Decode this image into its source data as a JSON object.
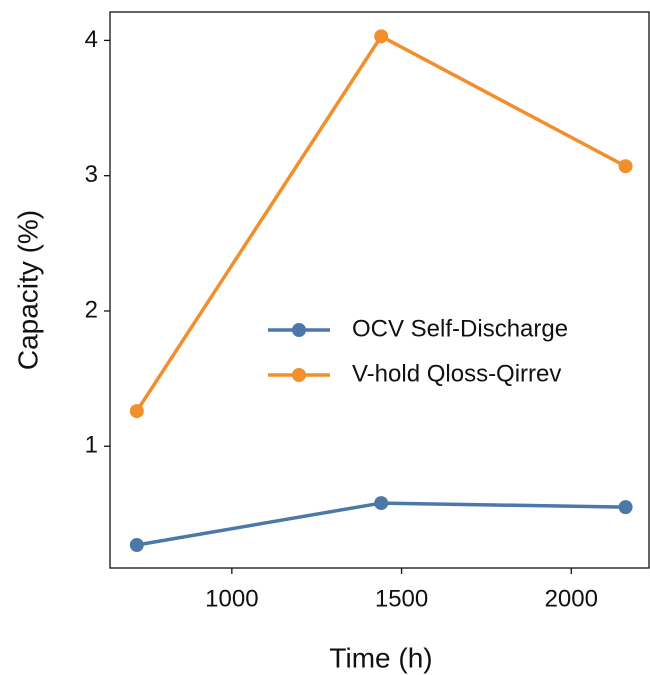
{
  "chart_data": {
    "type": "line",
    "x_label": "Time (h)",
    "y_label": "Capacity (%)",
    "x": [
      720,
      1440,
      2160
    ],
    "series": [
      {
        "name": "OCV Self-Discharge",
        "color": "#4c78a8",
        "values": [
          0.27,
          0.58,
          0.55
        ]
      },
      {
        "name": "V-hold Qloss-Qirrev",
        "color": "#f28e2b",
        "values": [
          1.26,
          4.03,
          3.07
        ]
      }
    ],
    "xlim": [
      641,
      2229
    ],
    "xticks": [
      1000,
      1500,
      2000
    ],
    "ylim": [
      0.1,
      4.21
    ],
    "yticks": [
      1,
      2,
      3,
      4
    ],
    "legend": "center right",
    "grid": false
  }
}
